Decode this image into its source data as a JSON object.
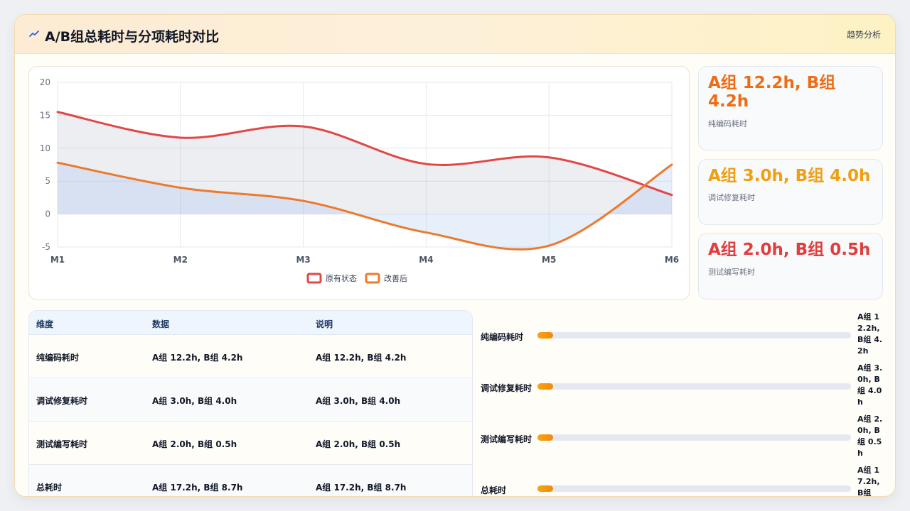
{
  "header": {
    "title": "A/B组总耗时与分项耗时对比",
    "right_label": "趋势分析"
  },
  "chart_data": {
    "type": "line",
    "x": [
      "M1",
      "M2",
      "M3",
      "M4",
      "M5",
      "M6"
    ],
    "ylim": [
      -5,
      20
    ],
    "yticks": [
      -5,
      0,
      5,
      10,
      15,
      20
    ],
    "grid": true,
    "legend_position": "bottom",
    "series": [
      {
        "name": "原有状态",
        "values": [
          15.5,
          11.6,
          13.3,
          7.6,
          8.6,
          2.9
        ],
        "color": "#e04848"
      },
      {
        "name": "改善后",
        "values": [
          7.8,
          4.0,
          2.0,
          -2.8,
          -4.8,
          7.5
        ],
        "color": "#ec7a2c"
      }
    ]
  },
  "metrics": [
    {
      "value": "A组 12.2h, B组 4.2h",
      "label": "纯编码耗时",
      "color": "#ef6c16"
    },
    {
      "value": "A组 3.0h, B组 4.0h",
      "label": "调试修复耗时",
      "color": "#f29f0f"
    },
    {
      "value": "A组 2.0h, B组 0.5h",
      "label": "测试编写耗时",
      "color": "#e23d3d"
    }
  ],
  "table": {
    "headers": [
      "维度",
      "数据",
      "说明"
    ],
    "rows": [
      [
        "纯编码耗时",
        "A组 12.2h, B组 4.2h",
        "A组 12.2h, B组 4.2h"
      ],
      [
        "调试修复耗时",
        "A组 3.0h, B组 4.0h",
        "A组 3.0h, B组 4.0h"
      ],
      [
        "测试编写耗时",
        "A组 2.0h, B组 0.5h",
        "A组 2.0h, B组 0.5h"
      ],
      [
        "总耗时",
        "A组 17.2h, B组 8.7h",
        "A组 17.2h, B组 8.7h"
      ]
    ]
  },
  "bars": [
    {
      "label": "纯编码耗时",
      "value": "A组 12.2h, B组 4.2h",
      "fraction": 0.05
    },
    {
      "label": "调试修复耗时",
      "value": "A组 3.0h, B组 4.0h",
      "fraction": 0.05
    },
    {
      "label": "测试编写耗时",
      "value": "A组 2.0h, B组 0.5h",
      "fraction": 0.05
    },
    {
      "label": "总耗时",
      "value": "A组 17.2h, B组",
      "fraction": 0.05
    }
  ]
}
